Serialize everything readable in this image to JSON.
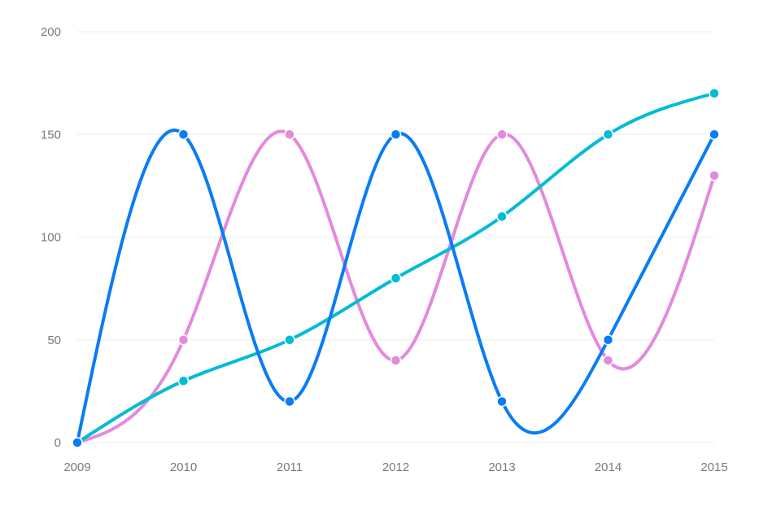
{
  "chart_data": {
    "type": "line",
    "title": "",
    "xlabel": "",
    "ylabel": "",
    "categories": [
      "2009",
      "2010",
      "2011",
      "2012",
      "2013",
      "2014",
      "2015"
    ],
    "ylim": [
      0,
      200
    ],
    "yticks": [
      "0",
      "50",
      "100",
      "150",
      "200"
    ],
    "grid": true,
    "legend": "none",
    "curve": "smooth",
    "series": [
      {
        "color": "#e38ade",
        "values": [
          0,
          50,
          150,
          40,
          150,
          40,
          130
        ]
      },
      {
        "color": "#00bcd4",
        "values": [
          0,
          30,
          50,
          80,
          110,
          150,
          170
        ]
      },
      {
        "color": "#0a7cf5",
        "values": [
          0,
          150,
          20,
          150,
          20,
          50,
          150
        ]
      }
    ]
  }
}
